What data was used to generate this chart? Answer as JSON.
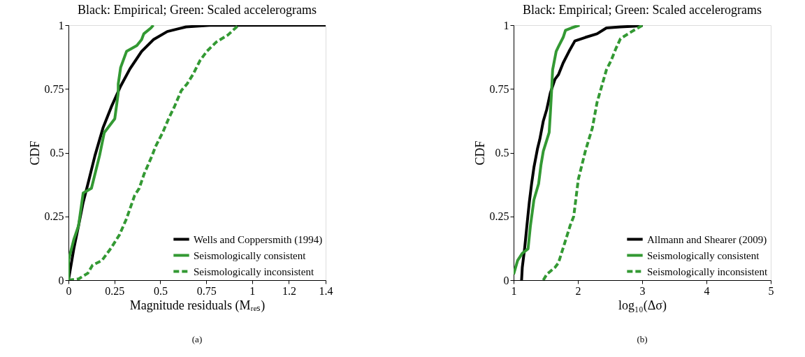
{
  "chart_data": [
    {
      "type": "line",
      "title": "Black: Empirical; Green: Scaled accelerograms",
      "xlabel": "Magnitude residuals (Mᵣₑₛ)",
      "ylabel": "CDF",
      "xlim": [
        0,
        1.4
      ],
      "xticks": [
        0,
        0.25,
        0.5,
        0.75,
        1,
        1.2,
        1.4
      ],
      "ylim": [
        0,
        1
      ],
      "yticks": [
        0,
        0.25,
        0.5,
        0.75,
        1
      ],
      "grid": false,
      "legend": "bottom right",
      "annotations": [
        "(a)"
      ],
      "series": [
        {
          "name": "Wells and Coppersmith (1994)",
          "color": "#000000",
          "line_style": "solid",
          "x": [
            0,
            0.029,
            0.055,
            0.08,
            0.106,
            0.144,
            0.188,
            0.233,
            0.284,
            0.335,
            0.398,
            0.462,
            0.538,
            0.64,
            0.767,
            1.4
          ],
          "values": [
            0,
            0.123,
            0.214,
            0.305,
            0.378,
            0.488,
            0.597,
            0.679,
            0.761,
            0.829,
            0.897,
            0.943,
            0.975,
            0.993,
            0.999,
            1
          ]
        },
        {
          "name": "Seismologically consistent",
          "color": "#339933",
          "line_style": "solid",
          "x": [
            0,
            0,
            0.029,
            0.055,
            0.08,
            0.125,
            0.169,
            0.195,
            0.252,
            0.271,
            0.271,
            0.284,
            0.316,
            0.372,
            0.398,
            0.41,
            0.449,
            0.462
          ],
          "values": [
            0,
            0.077,
            0.159,
            0.214,
            0.342,
            0.36,
            0.488,
            0.579,
            0.633,
            0.734,
            0.77,
            0.834,
            0.897,
            0.92,
            0.943,
            0.966,
            0.989,
            1
          ]
        },
        {
          "name": "Seismologically inconsistent",
          "color": "#339933",
          "line_style": "dashed",
          "x": [
            0,
            0.055,
            0.105,
            0.131,
            0.182,
            0.233,
            0.277,
            0.316,
            0.36,
            0.385,
            0.411,
            0.455,
            0.474,
            0.513,
            0.545,
            0.576,
            0.614,
            0.646,
            0.678,
            0.716,
            0.754,
            0.805,
            0.869,
            0.926
          ],
          "values": [
            0,
            0.005,
            0.027,
            0.059,
            0.077,
            0.127,
            0.177,
            0.241,
            0.332,
            0.36,
            0.415,
            0.488,
            0.524,
            0.579,
            0.633,
            0.679,
            0.743,
            0.77,
            0.807,
            0.861,
            0.898,
            0.934,
            0.962,
            1
          ]
        }
      ]
    },
    {
      "type": "line",
      "title": "Black: Empirical; Green: Scaled accelerograms",
      "xlabel": "log₁₀(Δσ)",
      "ylabel": "CDF",
      "xlim": [
        1,
        5
      ],
      "xticks": [
        1,
        2,
        3,
        4,
        5
      ],
      "ylim": [
        0,
        1
      ],
      "yticks": [
        0,
        0.25,
        0.5,
        0.75,
        1
      ],
      "grid": false,
      "legend": "bottom right",
      "annotations": [
        "(b)"
      ],
      "series": [
        {
          "name": "Allmann and Shearer (2009)",
          "color": "#000000",
          "line_style": "solid",
          "x": [
            1.124,
            1.135,
            1.171,
            1.207,
            1.244,
            1.28,
            1.316,
            1.371,
            1.407,
            1.462,
            1.516,
            1.571,
            1.644,
            1.698,
            1.771,
            1.862,
            1.953,
            2.116,
            2.298,
            2.444,
            2.662,
            2.88,
            3.007
          ],
          "values": [
            0,
            0.05,
            0.123,
            0.214,
            0.305,
            0.378,
            0.442,
            0.515,
            0.552,
            0.624,
            0.67,
            0.734,
            0.788,
            0.806,
            0.852,
            0.897,
            0.938,
            0.952,
            0.966,
            0.989,
            0.993,
            0.996,
            1
          ]
        },
        {
          "name": "Seismologically consistent",
          "color": "#339933",
          "line_style": "solid",
          "x": [
            1.0,
            1.062,
            1.135,
            1.225,
            1.262,
            1.316,
            1.389,
            1.425,
            1.462,
            1.553,
            1.571,
            1.589,
            1.607,
            1.662,
            1.698,
            1.771,
            1.807,
            1.898,
            2.025
          ],
          "values": [
            0.023,
            0.077,
            0.105,
            0.123,
            0.214,
            0.315,
            0.378,
            0.451,
            0.506,
            0.579,
            0.652,
            0.734,
            0.825,
            0.897,
            0.916,
            0.952,
            0.98,
            0.989,
            1
          ]
        },
        {
          "name": "Seismologically inconsistent",
          "color": "#339933",
          "line_style": "dashed",
          "x": [
            1.462,
            1.516,
            1.644,
            1.698,
            1.789,
            1.88,
            1.935,
            1.971,
            2.007,
            2.062,
            2.116,
            2.171,
            2.225,
            2.298,
            2.371,
            2.444,
            2.516,
            2.589,
            2.662,
            2.807,
            3.007
          ],
          "values": [
            0,
            0.023,
            0.05,
            0.068,
            0.141,
            0.214,
            0.25,
            0.323,
            0.396,
            0.451,
            0.506,
            0.552,
            0.597,
            0.697,
            0.761,
            0.825,
            0.861,
            0.907,
            0.947,
            0.97,
            1
          ]
        }
      ]
    }
  ]
}
